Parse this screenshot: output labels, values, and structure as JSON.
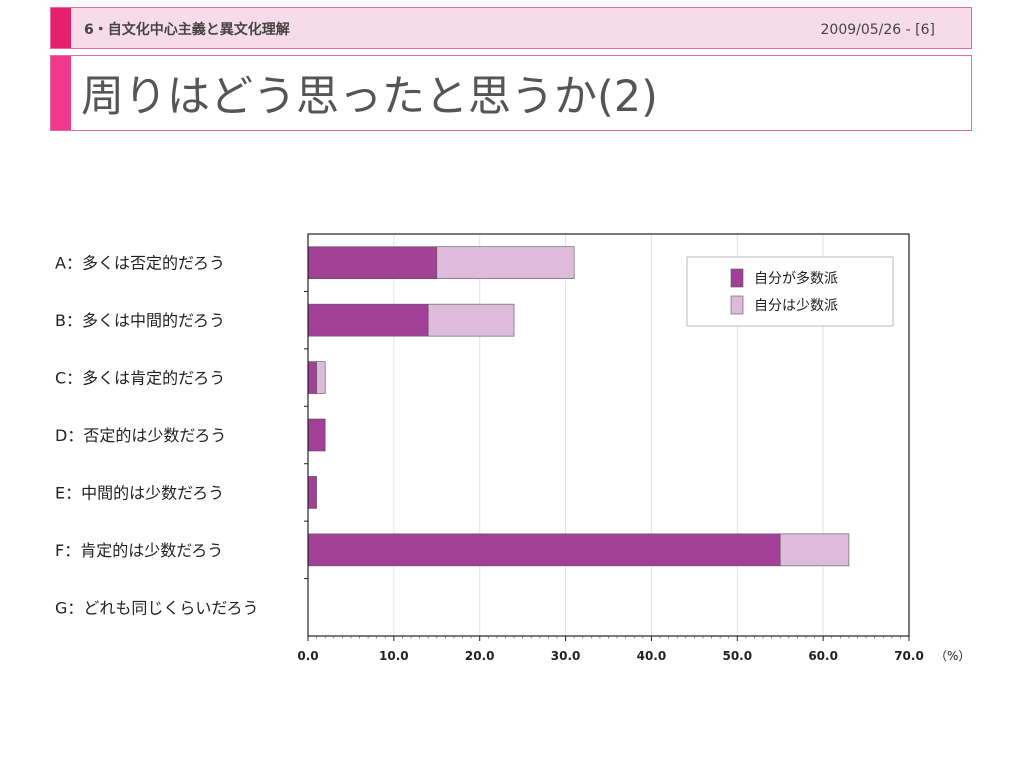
{
  "header": {
    "section": "6・自文化中心主義と異文化理解",
    "date": "2009/05/26 - [6]"
  },
  "slide": {
    "title": "周りはどう思ったと思うか(2)"
  },
  "colors": {
    "series1": "#a23f97",
    "series2": "#dfbbdb"
  },
  "chart_data": {
    "type": "bar",
    "orientation": "horizontal",
    "stacked": true,
    "categories": [
      "A：多くは否定的だろう",
      "B：多くは中間的だろう",
      "C：多くは肯定的だろう",
      "D：否定的は少数だろう",
      "E：中間的は少数だろう",
      "F：肯定的は少数だろう",
      "G：どれも同じくらいだろう"
    ],
    "series": [
      {
        "name": "自分が多数派",
        "values": [
          15,
          14,
          1,
          2,
          1,
          55,
          0
        ]
      },
      {
        "name": "自分は少数派",
        "values": [
          16,
          10,
          1,
          0,
          0,
          8,
          0
        ]
      }
    ],
    "xlim": [
      0,
      70
    ],
    "xticks": [
      "0.0",
      "10.0",
      "20.0",
      "30.0",
      "40.0",
      "50.0",
      "60.0",
      "70.0"
    ],
    "unit": "（%）",
    "grid": true,
    "legend": "top-right"
  }
}
